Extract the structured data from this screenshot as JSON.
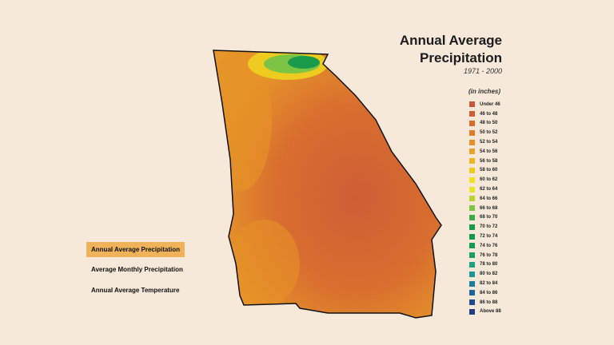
{
  "title_line1": "Annual Average",
  "title_line2": "Precipitation",
  "years": "1971 - 2000",
  "unit": "(in inches)",
  "nav": [
    {
      "label": "Annual Average Precipitation",
      "active": true
    },
    {
      "label": "Average Monthly Precipitation",
      "active": false
    },
    {
      "label": "Annual Average Temperature",
      "active": false
    }
  ],
  "legend": [
    {
      "label": "Under 46",
      "color": "#c9553a"
    },
    {
      "label": "46 to 48",
      "color": "#cf5e35"
    },
    {
      "label": "48 to 50",
      "color": "#d86d2e"
    },
    {
      "label": "50 to 52",
      "color": "#df7f2a"
    },
    {
      "label": "52 to 54",
      "color": "#e69127"
    },
    {
      "label": "54 to 56",
      "color": "#e9a326"
    },
    {
      "label": "56 to 58",
      "color": "#ebb524"
    },
    {
      "label": "58 to 60",
      "color": "#eecb1f"
    },
    {
      "label": "60 to 62",
      "color": "#f0e21f"
    },
    {
      "label": "62 to 64",
      "color": "#e6e52d"
    },
    {
      "label": "64 to 66",
      "color": "#b9d233"
    },
    {
      "label": "66 to 68",
      "color": "#7cc443"
    },
    {
      "label": "68 to 70",
      "color": "#3daa4c"
    },
    {
      "label": "70 to 72",
      "color": "#1a9a4b"
    },
    {
      "label": "72 to 74",
      "color": "#15984b"
    },
    {
      "label": "74 to 76",
      "color": "#149a4f"
    },
    {
      "label": "76 to 78",
      "color": "#1aa066"
    },
    {
      "label": "78 to 80",
      "color": "#1ea083"
    },
    {
      "label": "80 to 82",
      "color": "#1f9795"
    },
    {
      "label": "82 to 84",
      "color": "#1e7e9e"
    },
    {
      "label": "84 to 86",
      "color": "#1f649c"
    },
    {
      "label": "86 to 88",
      "color": "#214b8f"
    },
    {
      "label": "Above 88",
      "color": "#263a86"
    }
  ]
}
